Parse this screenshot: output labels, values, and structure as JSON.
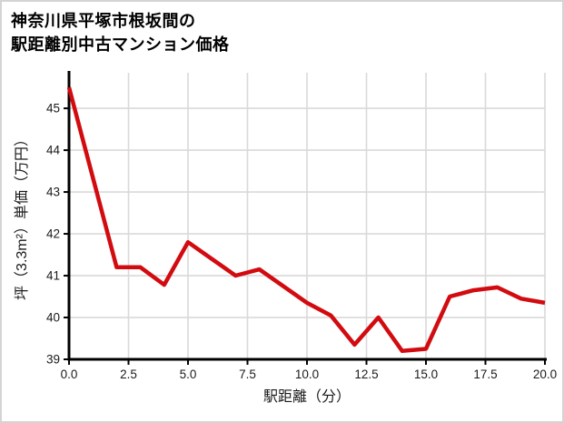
{
  "page": {
    "background_color": "#ffffff",
    "border_color": "#d4d4d4"
  },
  "title": {
    "line1": "神奈川県平塚市根坂間の",
    "line2": "駅距離別中古マンション価格"
  },
  "chart_data": {
    "type": "line",
    "title": "神奈川県平塚市根坂間の駅距離別中古マンション価格",
    "xlabel": "駅距離（分）",
    "ylabel": "坪（3.3m²）単価（万円）",
    "x": [
      0,
      1,
      2,
      3,
      4,
      5,
      6,
      7,
      8,
      9,
      10,
      11,
      12,
      13,
      14,
      15,
      16,
      17,
      18,
      19,
      20
    ],
    "values": [
      45.5,
      43.35,
      41.2,
      41.2,
      40.78,
      41.8,
      41.4,
      41.0,
      41.15,
      40.75,
      40.35,
      40.05,
      39.35,
      40.0,
      39.2,
      39.25,
      40.5,
      40.65,
      40.72,
      40.45,
      40.35
    ],
    "xlim": [
      0,
      20
    ],
    "ylim": [
      39,
      45.85
    ],
    "xticks": [
      0,
      2.5,
      5,
      7.5,
      10,
      12.5,
      15,
      17.5,
      20
    ],
    "xtick_labels": [
      "0.0",
      "2.5",
      "5.0",
      "7.5",
      "10.0",
      "12.5",
      "15.0",
      "17.5",
      "20.0"
    ],
    "yticks": [
      39,
      40,
      41,
      42,
      43,
      44,
      45
    ],
    "ytick_labels": [
      "39",
      "40",
      "41",
      "42",
      "43",
      "44",
      "45"
    ],
    "grid": true,
    "legend": "none",
    "line_color": "#d20b10",
    "line_width": 4.5,
    "grid_color": "#d9d9d9",
    "axis_color": "#000000",
    "tick_label_color": "#1a1a1a"
  }
}
